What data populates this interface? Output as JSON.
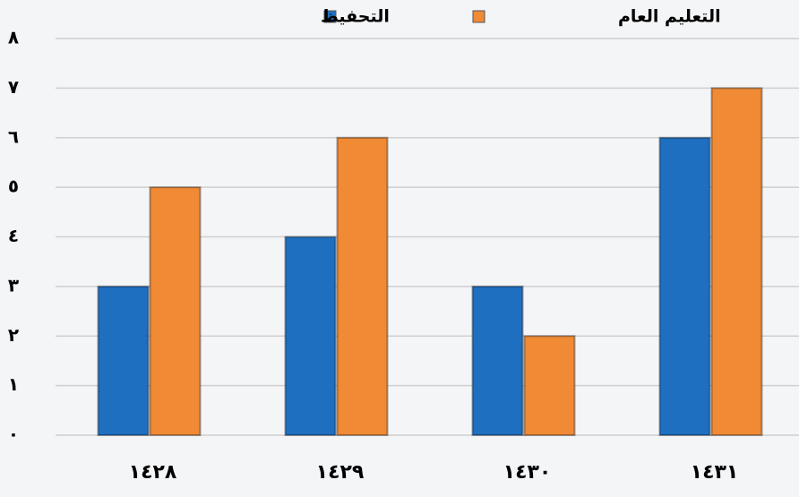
{
  "chart_data": {
    "type": "bar",
    "categories": [
      "١٤٢٨",
      "١٤٢٩",
      "١٤٣٠",
      "١٤٣١"
    ],
    "series": [
      {
        "name": "التحفيظ",
        "color": "#1f6fc0",
        "values": [
          3,
          4,
          3,
          6
        ]
      },
      {
        "name": "التعليم العام",
        "color": "#f08a35",
        "values": [
          5,
          6,
          2,
          7
        ]
      }
    ],
    "ylim": [
      0,
      8
    ],
    "yticks": [
      {
        "value": 0,
        "label": "٠"
      },
      {
        "value": 1,
        "label": "١"
      },
      {
        "value": 2,
        "label": "٢"
      },
      {
        "value": 3,
        "label": "٣"
      },
      {
        "value": 4,
        "label": "٤"
      },
      {
        "value": 5,
        "label": "٥"
      },
      {
        "value": 6,
        "label": "٦"
      },
      {
        "value": 7,
        "label": "٧"
      },
      {
        "value": 8,
        "label": "٨"
      }
    ],
    "grid": true
  }
}
